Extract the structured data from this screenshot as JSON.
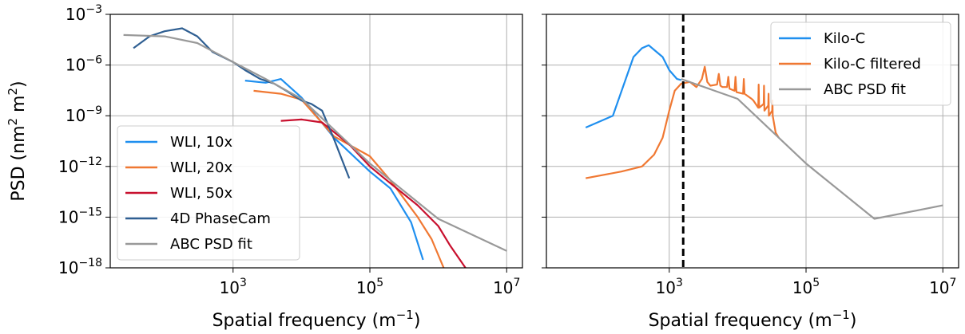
{
  "chart_data": [
    {
      "type": "line",
      "x_scale": "log",
      "y_scale": "log",
      "xlim": [
        16,
        17000000
      ],
      "ylim": [
        1e-18,
        0.001
      ],
      "xlabel": "Spatial frequency (m⁻¹)",
      "ylabel": "PSD (nm² m²)",
      "x_ticks": [
        {
          "value": 1000,
          "base": "10",
          "exp": "3"
        },
        {
          "value": 100000,
          "base": "10",
          "exp": "5"
        },
        {
          "value": 10000000,
          "base": "10",
          "exp": "7"
        }
      ],
      "y_ticks": [
        {
          "value": 0.001,
          "base": "10",
          "exp": "−3"
        },
        {
          "value": 1e-06,
          "base": "10",
          "exp": "−6"
        },
        {
          "value": 1e-09,
          "base": "10",
          "exp": "−9"
        },
        {
          "value": 1e-12,
          "base": "10",
          "exp": "−12"
        },
        {
          "value": 1e-15,
          "base": "10",
          "exp": "−15"
        },
        {
          "value": 1e-18,
          "base": "10",
          "exp": "−18"
        }
      ],
      "grid": true,
      "legend_position": "lower-left",
      "series": [
        {
          "name": "WLI, 10x",
          "color": "#1f8fef",
          "points": [
            [
              1500,
              1.2e-07
            ],
            [
              3000,
              9e-08
            ],
            [
              5000,
              1.5e-07
            ],
            [
              10000,
              1.2e-08
            ],
            [
              30000,
              5e-11
            ],
            [
              100000,
              5e-13
            ],
            [
              200000,
              5e-14
            ],
            [
              400000,
              5e-16
            ],
            [
              600000,
              3e-18
            ]
          ]
        },
        {
          "name": "WLI, 20x",
          "color": "#f07832",
          "points": [
            [
              2000,
              3e-08
            ],
            [
              5000,
              2e-08
            ],
            [
              10000,
              9e-09
            ],
            [
              30000,
              6e-11
            ],
            [
              100000,
              4e-12
            ],
            [
              200000,
              1.5e-13
            ],
            [
              500000,
              1e-15
            ],
            [
              800000,
              5e-17
            ],
            [
              1200000,
              1e-18
            ]
          ]
        },
        {
          "name": "WLI, 50x",
          "color": "#c8102e",
          "points": [
            [
              5000,
              5e-10
            ],
            [
              10000,
              6e-10
            ],
            [
              20000,
              4e-10
            ],
            [
              50000,
              2e-11
            ],
            [
              100000,
              1e-12
            ],
            [
              200000,
              1e-13
            ],
            [
              500000,
              5e-15
            ],
            [
              1000000,
              3e-16
            ],
            [
              1500000,
              2e-17
            ],
            [
              2500000,
              1e-18
            ]
          ]
        },
        {
          "name": "4D PhaseCam",
          "color": "#2f5f92",
          "points": [
            [
              35,
              1e-05
            ],
            [
              60,
              5e-05
            ],
            [
              100,
              0.0001
            ],
            [
              180,
              0.00015
            ],
            [
              300,
              5e-05
            ],
            [
              500,
              6e-06
            ],
            [
              1000,
              1.5e-06
            ],
            [
              1500,
              5e-07
            ],
            [
              2500,
              1.5e-07
            ],
            [
              4000,
              8e-08
            ],
            [
              6000,
              3e-08
            ],
            [
              10000,
              8e-09
            ],
            [
              14000,
              5e-09
            ],
            [
              20000,
              2e-09
            ],
            [
              30000,
              4e-11
            ],
            [
              40000,
              2e-12
            ],
            [
              50000,
              2e-13
            ]
          ]
        },
        {
          "name": "ABC PSD fit",
          "color": "#999999",
          "points": [
            [
              25,
              6e-05
            ],
            [
              100,
              5e-05
            ],
            [
              300,
              2e-05
            ],
            [
              1000,
              1.5e-06
            ],
            [
              3000,
              1.5e-07
            ],
            [
              10000,
              1e-08
            ],
            [
              100000,
              1.5e-12
            ],
            [
              1000000,
              8e-16
            ],
            [
              10000000,
              1e-17
            ]
          ]
        }
      ]
    },
    {
      "type": "line",
      "x_scale": "log",
      "y_scale": "log",
      "xlim": [
        16,
        17000000
      ],
      "ylim": [
        1e-18,
        0.001
      ],
      "xlabel": "Spatial frequency (m⁻¹)",
      "x_ticks": [
        {
          "value": 1000,
          "base": "10",
          "exp": "3"
        },
        {
          "value": 100000,
          "base": "10",
          "exp": "5"
        },
        {
          "value": 10000000,
          "base": "10",
          "exp": "7"
        }
      ],
      "grid": true,
      "legend_position": "upper-right",
      "vertical_line": {
        "x": 1600,
        "style": "dashed",
        "color": "#000000"
      },
      "series": [
        {
          "name": "Kilo-C",
          "color": "#1f8fef",
          "points": [
            [
              60,
              2e-10
            ],
            [
              150,
              1e-09
            ],
            [
              300,
              3e-06
            ],
            [
              400,
              1e-05
            ],
            [
              500,
              1.5e-05
            ],
            [
              600,
              8e-06
            ],
            [
              800,
              3e-06
            ],
            [
              1000,
              5e-07
            ],
            [
              1300,
              1.5e-07
            ],
            [
              1500,
              1.3e-07
            ]
          ]
        },
        {
          "name": "Kilo-C filtered",
          "color": "#f07832",
          "points": [
            [
              60,
              2e-13
            ],
            [
              200,
              5e-13
            ],
            [
              400,
              1e-12
            ],
            [
              600,
              5e-12
            ],
            [
              800,
              5e-11
            ],
            [
              1000,
              2e-09
            ],
            [
              1200,
              3e-08
            ],
            [
              1500,
              8e-08
            ],
            [
              2000,
              1e-07
            ],
            [
              2500,
              5e-08
            ],
            [
              3000,
              1.5e-07
            ],
            [
              3300,
              8e-07
            ],
            [
              3600,
              1e-07
            ],
            [
              4000,
              6e-08
            ],
            [
              5000,
              7e-08
            ],
            [
              5300,
              3e-07
            ],
            [
              5600,
              6e-08
            ],
            [
              6000,
              5e-08
            ],
            [
              7000,
              5e-08
            ],
            [
              7300,
              2e-07
            ],
            [
              7600,
              4e-08
            ],
            [
              9000,
              3e-08
            ],
            [
              9300,
              2e-07
            ],
            [
              9600,
              2.5e-08
            ],
            [
              12000,
              2e-08
            ],
            [
              12300,
              1.5e-07
            ],
            [
              12600,
              2e-08
            ],
            [
              16000,
              1e-08
            ],
            [
              17000,
              8e-09
            ],
            [
              20000,
              3e-09
            ],
            [
              20300,
              7e-08
            ],
            [
              20600,
              3e-09
            ],
            [
              24000,
              5e-09
            ],
            [
              24300,
              6e-08
            ],
            [
              24600,
              2e-09
            ],
            [
              28000,
              4e-09
            ],
            [
              28300,
              2e-08
            ],
            [
              28600,
              1e-09
            ],
            [
              32000,
              2e-09
            ],
            [
              32300,
              8e-09
            ],
            [
              32600,
              1e-09
            ],
            [
              36000,
              1e-10
            ],
            [
              40000,
              5e-11
            ]
          ]
        },
        {
          "name": "ABC PSD fit",
          "color": "#999999",
          "points": [
            [
              1500,
              1.5e-07
            ],
            [
              10000,
              1e-08
            ],
            [
              100000,
              1.5e-12
            ],
            [
              1000000,
              8e-16
            ],
            [
              10000000,
              5e-15
            ]
          ]
        }
      ]
    }
  ]
}
